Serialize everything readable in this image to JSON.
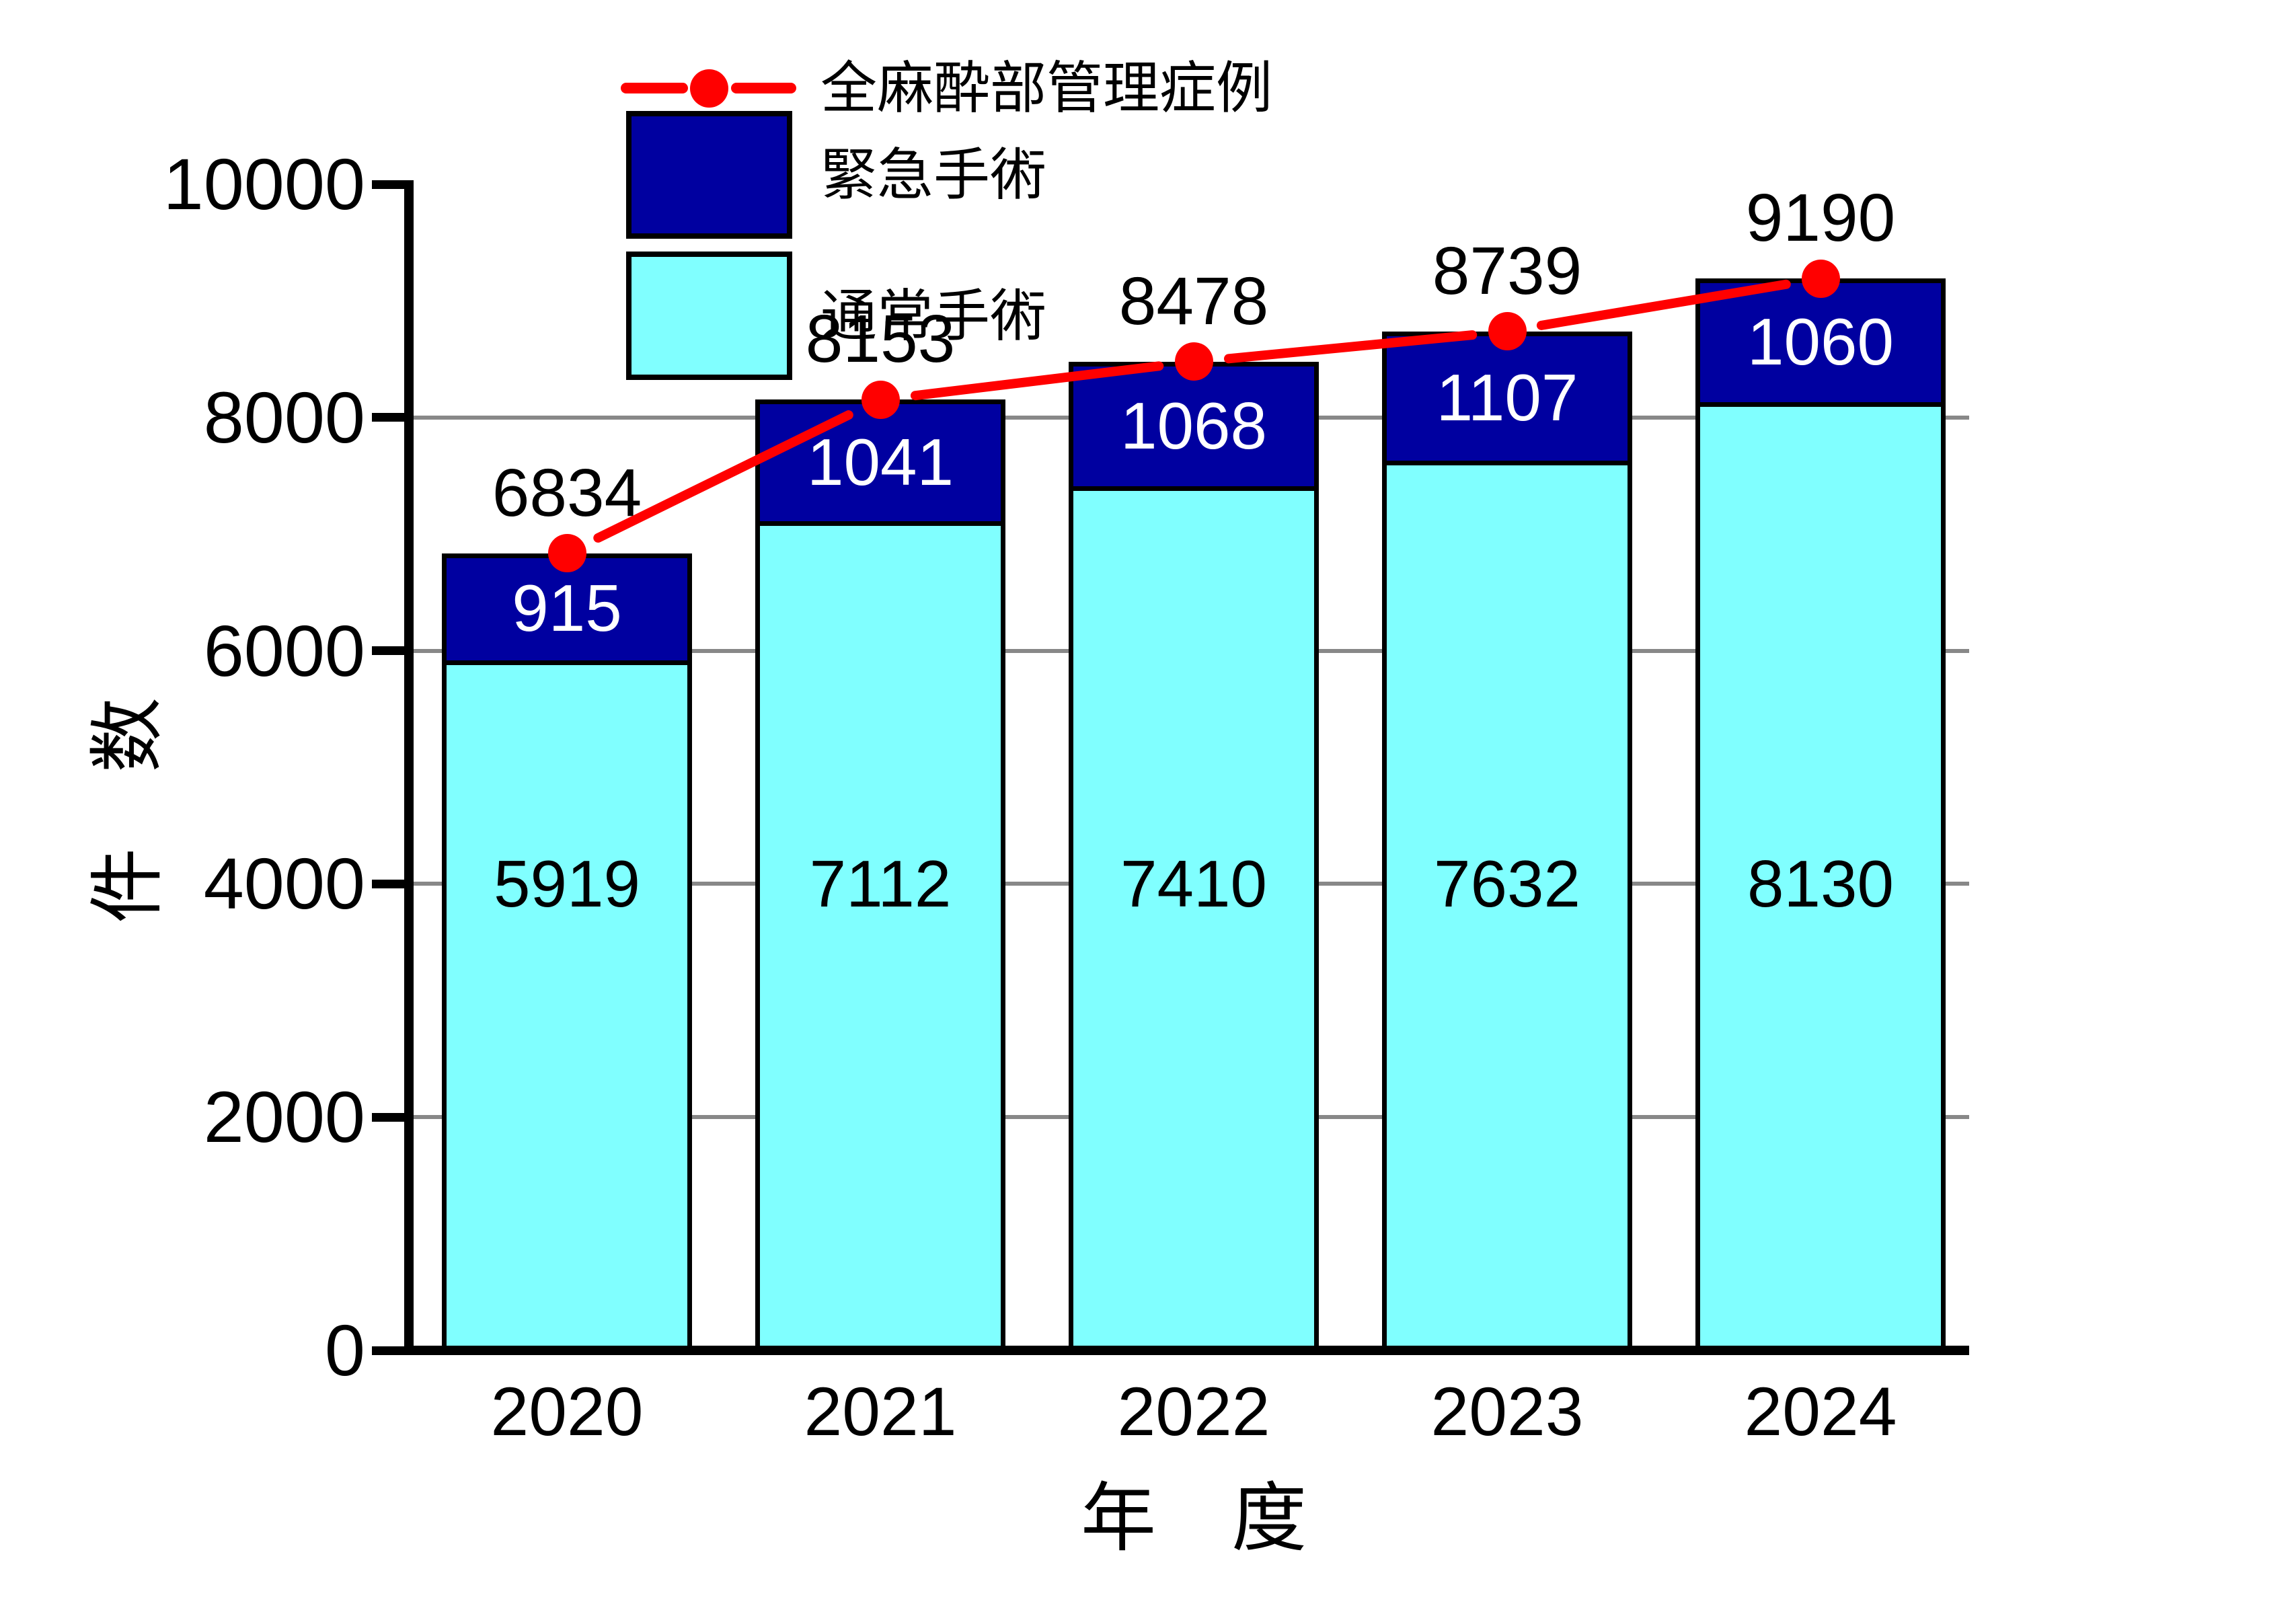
{
  "chart_data": {
    "type": "bar",
    "subtype": "stacked-bar-with-line",
    "title": "",
    "categories": [
      "2020",
      "2021",
      "2022",
      "2023",
      "2024"
    ],
    "series": [
      {
        "name": "通常手術",
        "type": "bar",
        "color": "#80FFFF",
        "label_color": "#000000",
        "values": [
          5919,
          7112,
          7410,
          7632,
          8130
        ]
      },
      {
        "name": "緊急手術",
        "type": "bar",
        "color": "#0000A0",
        "label_color": "#FFFFFF",
        "values": [
          915,
          1041,
          1068,
          1107,
          1060
        ]
      },
      {
        "name": "全麻酔部管理症例",
        "type": "line",
        "color": "#FF0000",
        "marker": "circle",
        "values": [
          6834,
          8153,
          8478,
          8739,
          9190
        ]
      }
    ],
    "stacked": true,
    "xlabel": "年　度",
    "ylabel": "件　数",
    "ylim": [
      0,
      10000
    ],
    "yticks": [
      0,
      2000,
      4000,
      6000,
      8000,
      10000
    ],
    "gridline_values": [
      2000,
      4000,
      6000,
      8000
    ],
    "grid": true,
    "grid_color": "#888888",
    "axis_color": "#000000",
    "background_color": "#FFFFFF",
    "legend_position": "top-left-inside"
  }
}
